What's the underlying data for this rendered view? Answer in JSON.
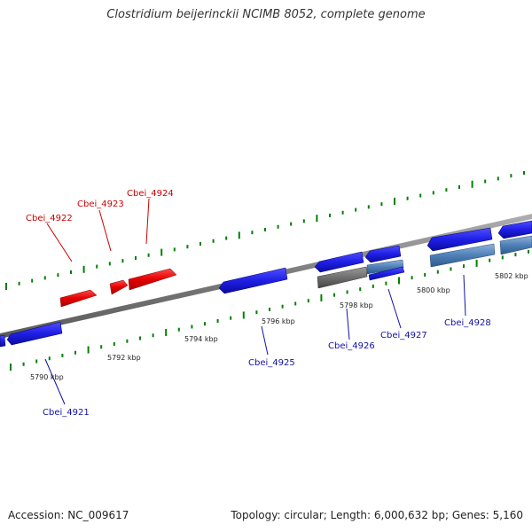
{
  "title": "Clostridium beijerinckii NCIMB 8052, complete genome",
  "footer": {
    "accession": "Accession: NC_009617",
    "summary": "Topology: circular; Length: 6,000,632 bp; Genes: 5,160"
  },
  "colors": {
    "forward_gene": "#e60000",
    "reverse_gene": "#1f1fe6",
    "pseudo_gene": "#6f6f6f",
    "rna_gene": "#4f7fb8",
    "backbone": "#8a8a8a",
    "tick": "#008000",
    "forward_label": "#cc0000",
    "reverse_label": "#1010a8"
  },
  "scale_labels": [
    "5790 kbp",
    "5792 kbp",
    "5794 kbp",
    "5796 kbp",
    "5798 kbp",
    "5800 kbp",
    "5802 kbp"
  ],
  "genes": [
    {
      "label": "Cbei_4922",
      "strand": "forward"
    },
    {
      "label": "Cbei_4923",
      "strand": "forward"
    },
    {
      "label": "Cbei_4924",
      "strand": "forward"
    },
    {
      "label": "Cbei_4921",
      "strand": "reverse"
    },
    {
      "label": "Cbei_4925",
      "strand": "reverse"
    },
    {
      "label": "Cbei_4926",
      "strand": "reverse"
    },
    {
      "label": "Cbei_4927",
      "strand": "reverse"
    },
    {
      "label": "Cbei_4928",
      "strand": "reverse"
    }
  ]
}
